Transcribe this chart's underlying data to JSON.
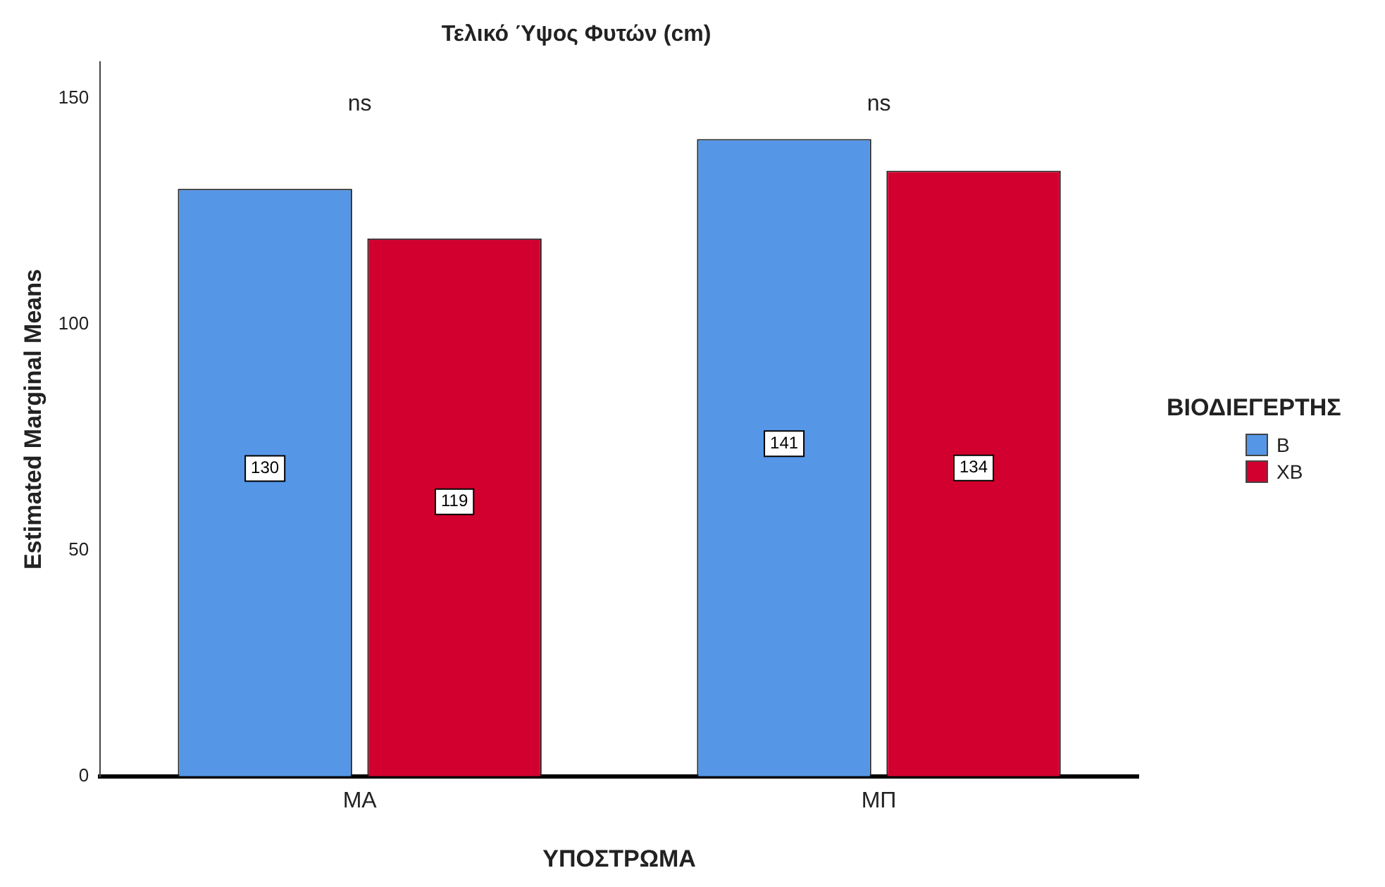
{
  "chart_data": {
    "type": "bar",
    "title": "Τελικό Ύψος Φυτών (cm)",
    "xlabel": "ΥΠΟΣΤΡΩΜΑ",
    "ylabel": "Estimated Marginal Means",
    "legend_title": "ΒΙΟΔΙΕΓΕΡΤΗΣ",
    "categories": [
      "ΜΑ",
      "ΜΠ"
    ],
    "series": [
      {
        "name": "Β",
        "color": "#5596e6",
        "values": [
          130,
          141
        ]
      },
      {
        "name": "ΧΒ",
        "color": "#d2002e",
        "values": [
          119,
          134
        ]
      }
    ],
    "ylim": [
      0,
      158
    ],
    "yticks": [
      0,
      50,
      100,
      150
    ],
    "grid": false,
    "legend": "right",
    "data_labels": true,
    "annotations": [
      "ns",
      "ns"
    ]
  }
}
